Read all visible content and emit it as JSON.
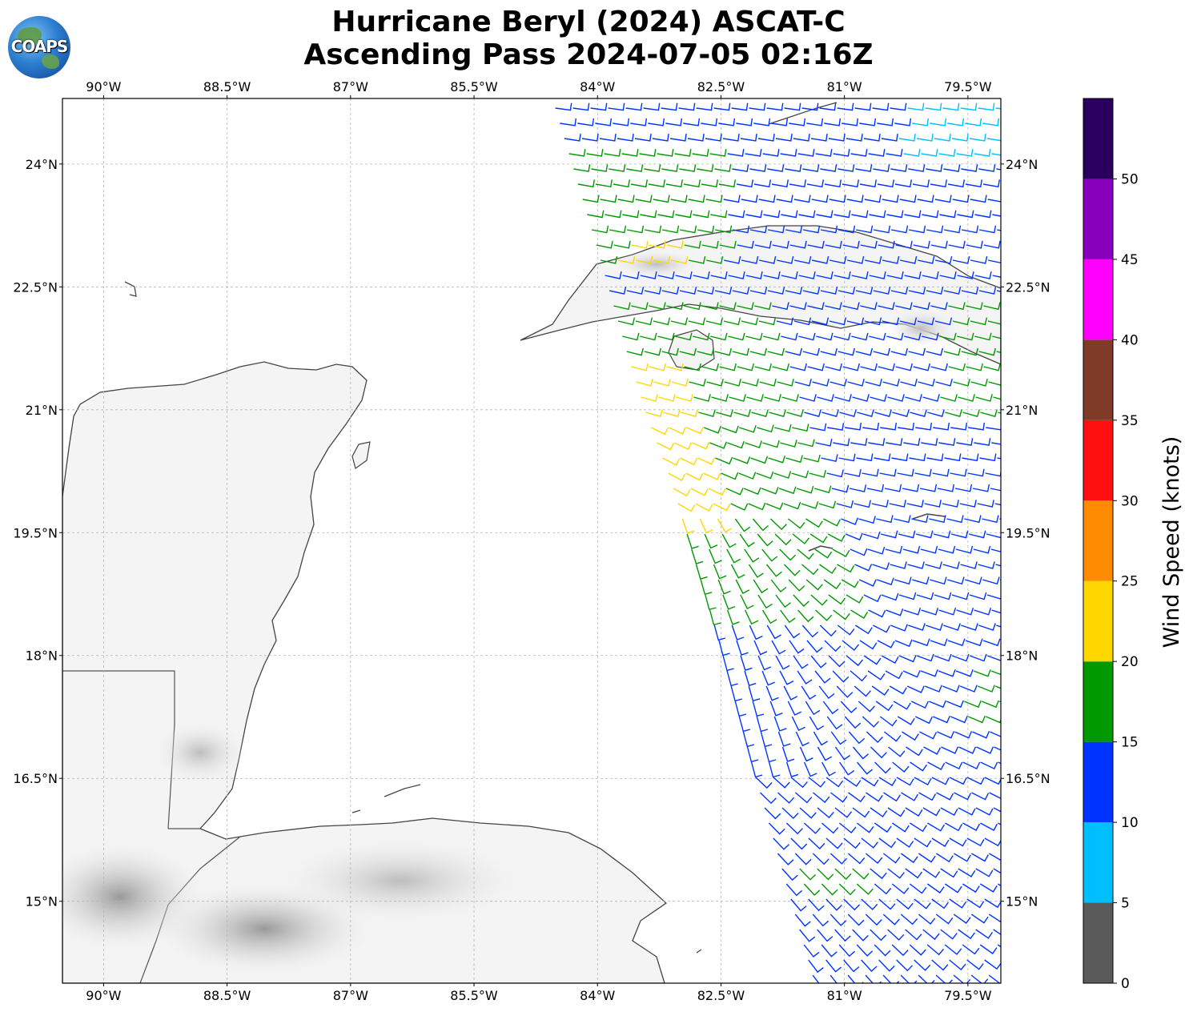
{
  "header": {
    "title_line1": "Hurricane Beryl (2024) ASCAT-C",
    "title_line2": "Ascending Pass 2024-07-05 02:16Z",
    "logo_text": "COAPS"
  },
  "map": {
    "lon_ticks": [
      "90°W",
      "88.5°W",
      "87°W",
      "85.5°W",
      "84°W",
      "82.5°W",
      "81°W",
      "79.5°W"
    ],
    "lat_ticks": [
      "24°N",
      "22.5°N",
      "21°N",
      "19.5°N",
      "18°N",
      "16.5°N",
      "15°N"
    ],
    "lon_range_deg": [
      -90.5,
      -79.1
    ],
    "lat_range_deg": [
      14.0,
      24.8
    ],
    "gridlines": true
  },
  "colorbar": {
    "label": "Wind Speed (knots)",
    "ticks": [
      "0",
      "5",
      "10",
      "15",
      "20",
      "25",
      "30",
      "35",
      "40",
      "45",
      "50"
    ],
    "bins": [
      {
        "min": 0,
        "max": 5,
        "color": "#5a5a5a"
      },
      {
        "min": 5,
        "max": 10,
        "color": "#00bfff"
      },
      {
        "min": 10,
        "max": 15,
        "color": "#0033ff"
      },
      {
        "min": 15,
        "max": 20,
        "color": "#009900"
      },
      {
        "min": 20,
        "max": 25,
        "color": "#ffd700"
      },
      {
        "min": 25,
        "max": 30,
        "color": "#ff8c00"
      },
      {
        "min": 30,
        "max": 35,
        "color": "#ff1010"
      },
      {
        "min": 35,
        "max": 40,
        "color": "#803a28"
      },
      {
        "min": 40,
        "max": 45,
        "color": "#ff00ff"
      },
      {
        "min": 45,
        "max": 50,
        "color": "#8800bb"
      },
      {
        "min": 50,
        "max": 55,
        "color": "#2a005f"
      }
    ]
  },
  "wind_field": {
    "colors": {
      "calm": "#00bfff",
      "moderate": "#0033ff",
      "fresh": "#009900",
      "strong": "#ffd700"
    }
  }
}
